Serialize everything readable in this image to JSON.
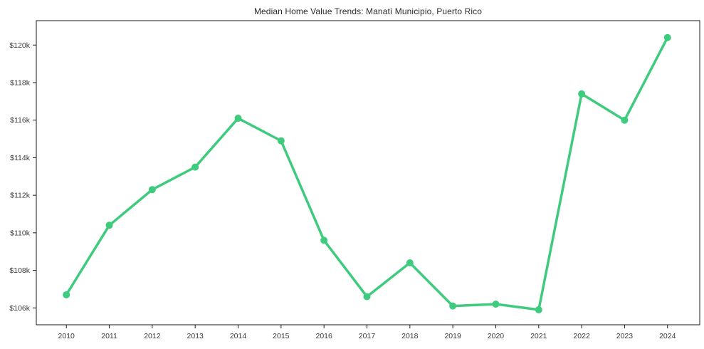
{
  "chart_data": {
    "type": "line",
    "title": "Median Home Value Trends: Manatí Municipio, Puerto Rico",
    "series_name": "Median Home Value",
    "x": [
      2010,
      2011,
      2012,
      2013,
      2014,
      2015,
      2016,
      2017,
      2018,
      2019,
      2020,
      2021,
      2022,
      2023,
      2024
    ],
    "values": [
      106700,
      110400,
      112300,
      113500,
      116100,
      114900,
      109600,
      106600,
      108400,
      106100,
      106200,
      105900,
      117400,
      116000,
      120400
    ],
    "xtick_labels": [
      "2010",
      "2011",
      "2012",
      "2013",
      "2014",
      "2015",
      "2016",
      "2017",
      "2018",
      "2019",
      "2020",
      "2021",
      "2022",
      "2023",
      "2024"
    ],
    "yticks": [
      106000,
      108000,
      110000,
      112000,
      114000,
      116000,
      118000,
      120000
    ],
    "ytick_labels": [
      "$106k",
      "$108k",
      "$110k",
      "$112k",
      "$114k",
      "$116k",
      "$118k",
      "$120k"
    ],
    "xlabel": "",
    "ylabel": "",
    "xlim": [
      2009.3,
      2024.75
    ],
    "ylim": [
      105100,
      121300
    ],
    "grid": false,
    "legend": "none",
    "marker": "circle",
    "line_color": "#3ecb7e",
    "axis_color": "#1a1a1a",
    "tick_text_color": "#3a3a3a",
    "background": "#ffffff"
  }
}
